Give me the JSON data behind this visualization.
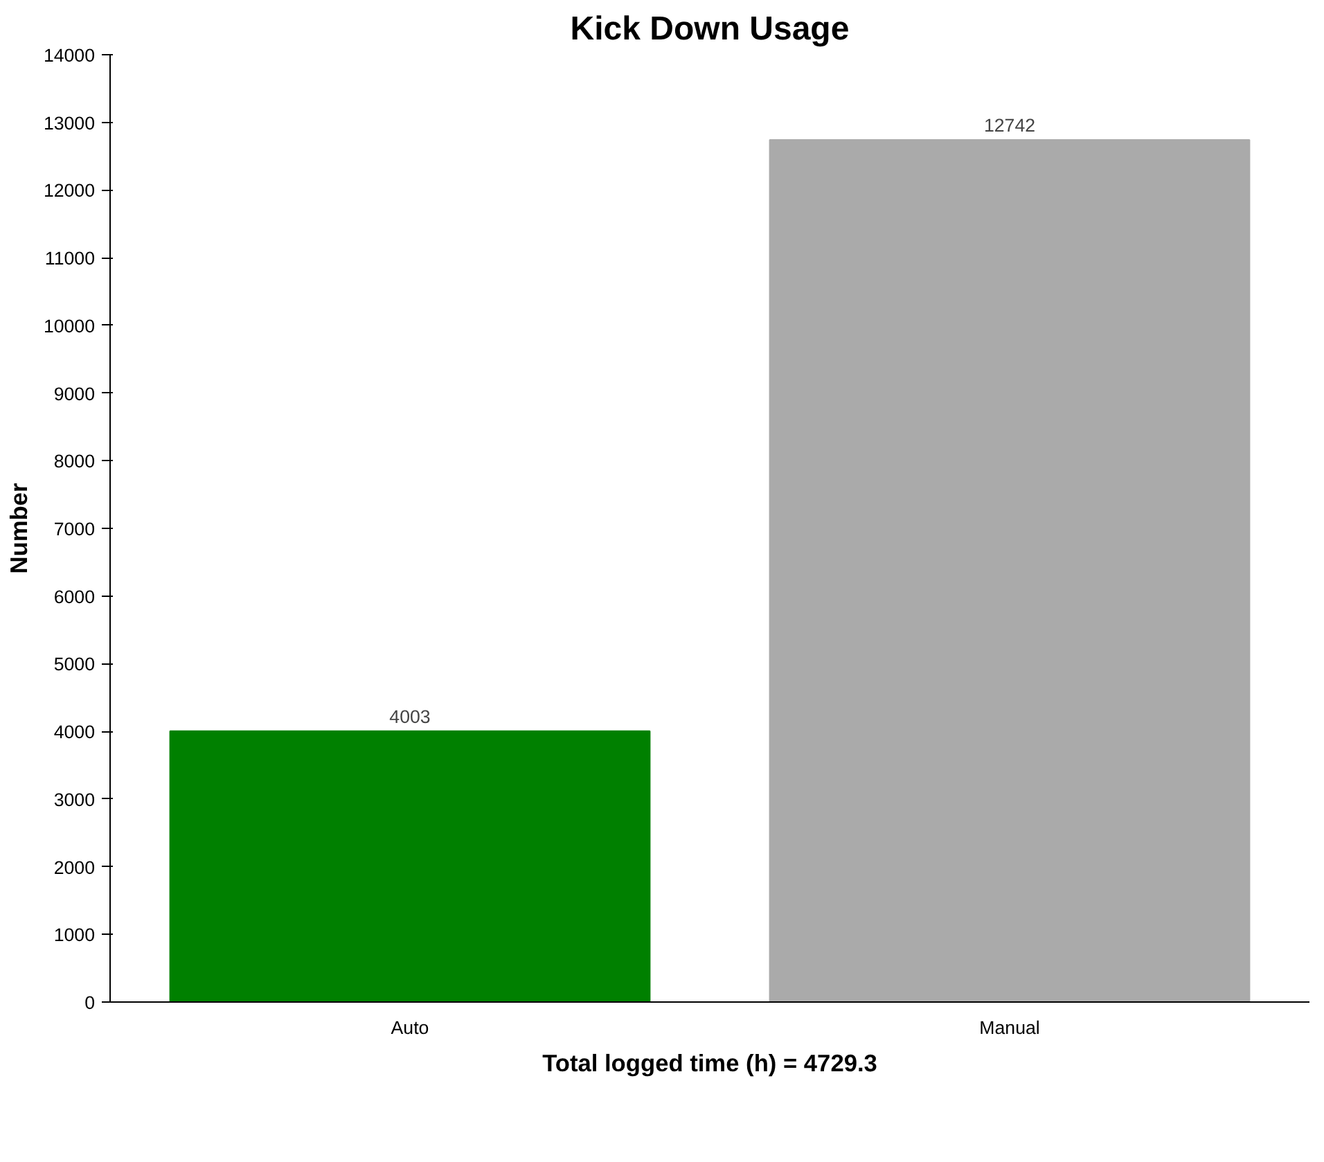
{
  "chart_data": {
    "type": "bar",
    "title": "Kick Down Usage",
    "xlabel": "Total logged time (h) = 4729.3",
    "ylabel": "Number",
    "categories": [
      "Auto",
      "Manual"
    ],
    "values": [
      4003,
      12742
    ],
    "colors": [
      "#008000",
      "#aaaaaa"
    ],
    "ylim": [
      0,
      14000
    ],
    "yticks": [
      0,
      1000,
      2000,
      3000,
      4000,
      5000,
      6000,
      7000,
      8000,
      9000,
      10000,
      11000,
      12000,
      13000,
      14000
    ],
    "data_labels": true,
    "grid": false
  }
}
